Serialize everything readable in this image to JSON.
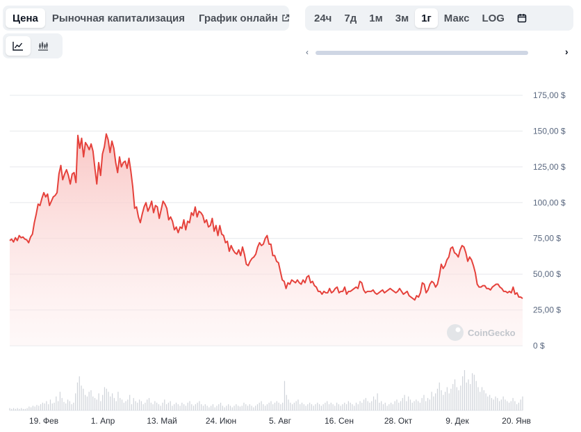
{
  "tabs": {
    "price": "Цена",
    "market_cap": "Рыночная капитализация",
    "live_chart": "График онлайн"
  },
  "ranges": [
    "24ч",
    "7д",
    "1м",
    "3м",
    "1г",
    "Макс",
    "LOG"
  ],
  "active_range": "1г",
  "watermark": "CoinGecko",
  "colors": {
    "line": "#e5413b",
    "fill_top": "#f9c4c2",
    "grid": "#e6e8ec",
    "volume": "#cfd3d9"
  },
  "chart_data": {
    "type": "area",
    "y_ticks": [
      "175,00 $",
      "150,00 $",
      "125,00 $",
      "100,00 $",
      "75,00 $",
      "50,00 $",
      "25,00 $",
      "0 $"
    ],
    "x_ticks": [
      "19. Фев",
      "1. Апр",
      "13. Май",
      "24. Июн",
      "5. Авг",
      "16. Сен",
      "28. Окт",
      "9. Дек",
      "20. Янв"
    ],
    "ylim": [
      0,
      175
    ],
    "grid": true,
    "legend": "none",
    "series": [
      {
        "values": [
          73.5,
          74.5,
          72.5,
          75.5,
          73.5,
          77,
          75.5,
          76,
          74.5,
          74,
          72,
          76,
          78,
          86,
          92,
          99,
          98,
          103,
          107,
          104,
          106,
          98,
          101,
          104,
          105,
          107,
          120,
          126,
          116,
          120,
          123,
          119,
          113,
          120,
          121,
          114,
          147,
          138,
          145,
          132,
          142,
          140,
          137,
          141,
          136,
          124,
          113,
          128,
          119,
          134,
          139,
          148,
          144,
          135,
          143,
          138,
          128,
          121,
          132,
          125,
          128,
          129,
          124,
          131,
          122,
          111,
          96,
          97,
          90,
          86,
          92,
          97,
          100,
          94,
          97,
          101,
          93,
          98,
          97,
          89,
          95,
          101,
          99,
          96,
          88,
          90,
          87,
          81,
          83,
          79,
          83,
          82,
          88,
          81,
          87,
          86,
          93,
          91,
          97,
          90,
          94,
          93,
          91,
          86,
          88,
          83,
          84,
          89,
          80,
          84,
          77,
          84,
          78,
          77,
          72,
          73,
          66,
          70,
          67,
          65,
          64,
          67,
          63,
          69,
          64,
          57,
          56,
          59,
          61,
          62,
          64,
          69,
          72,
          70,
          71,
          75,
          77,
          71,
          71,
          63,
          63,
          59,
          58,
          52,
          46,
          45,
          40,
          44,
          43,
          46,
          45,
          44,
          46,
          44,
          43,
          46,
          44,
          48,
          49,
          44,
          45,
          42,
          41,
          38,
          38,
          36,
          38,
          37,
          37,
          40,
          37,
          38,
          40,
          41,
          37,
          38,
          38,
          41,
          36,
          38,
          38,
          39,
          40,
          41,
          40,
          45,
          44,
          39,
          37,
          38,
          38,
          38,
          39,
          37,
          36,
          37,
          38,
          39,
          37,
          38,
          39,
          40,
          39,
          38,
          37,
          38,
          40,
          38,
          36,
          37,
          38,
          35,
          34,
          33,
          32,
          35,
          34,
          37,
          44,
          43,
          37,
          39,
          43,
          45,
          44,
          41,
          43,
          49,
          57,
          54,
          56,
          60,
          62,
          68,
          69,
          65,
          64,
          62,
          67,
          70,
          69,
          65,
          59,
          62,
          60,
          56,
          51,
          43,
          41,
          41,
          42,
          42,
          40,
          40,
          39,
          41,
          42,
          43,
          43,
          41,
          40,
          38,
          38,
          37,
          38,
          37,
          41,
          36,
          37,
          34,
          34,
          33
        ]
      }
    ],
    "volume": [
      3,
      2,
      3,
      2,
      3,
      2,
      3,
      2,
      2,
      3,
      5,
      4,
      6,
      5,
      7,
      6,
      8,
      10,
      9,
      12,
      8,
      14,
      9,
      10,
      18,
      12,
      24,
      16,
      11,
      9,
      14,
      12,
      8,
      10,
      22,
      36,
      44,
      32,
      28,
      20,
      18,
      24,
      26,
      18,
      16,
      14,
      22,
      12,
      20,
      30,
      28,
      24,
      18,
      22,
      16,
      12,
      24,
      16,
      14,
      10,
      12,
      14,
      20,
      8,
      16,
      12,
      10,
      14,
      12,
      8,
      10,
      14,
      16,
      10,
      8,
      12,
      10,
      8,
      6,
      10,
      14,
      8,
      10,
      12,
      6,
      8,
      10,
      8,
      6,
      10,
      8,
      6,
      10,
      12,
      8,
      6,
      8,
      10,
      12,
      8,
      6,
      8,
      6,
      4,
      6,
      8,
      4,
      6,
      8,
      10,
      6,
      4,
      6,
      8,
      6,
      4,
      6,
      8,
      6,
      5,
      6,
      10,
      8,
      6,
      8,
      6,
      4,
      6,
      8,
      10,
      12,
      8,
      6,
      8,
      10,
      12,
      8,
      10,
      12,
      10,
      8,
      10,
      38,
      20,
      14,
      10,
      8,
      10,
      12,
      14,
      8,
      10,
      8,
      6,
      8,
      10,
      8,
      6,
      8,
      10,
      8,
      6,
      8,
      10,
      12,
      8,
      10,
      8,
      6,
      10,
      8,
      6,
      8,
      10,
      8,
      12,
      10,
      8,
      6,
      10,
      8,
      12,
      10,
      14,
      16,
      12,
      10,
      12,
      18,
      14,
      22,
      10,
      12,
      8,
      10,
      6,
      8,
      10,
      8,
      12,
      14,
      10,
      12,
      16,
      20,
      12,
      18,
      14,
      10,
      12,
      14,
      12,
      10,
      16,
      20,
      12,
      16,
      14,
      24,
      18,
      22,
      28,
      36,
      26,
      20,
      24,
      30,
      22,
      28,
      34,
      40,
      30,
      26,
      32,
      44,
      52,
      36,
      40,
      34,
      48,
      46,
      38,
      30,
      24,
      30,
      26,
      22,
      18,
      20,
      16,
      14,
      18,
      16,
      12,
      14,
      18,
      14,
      12,
      10,
      12,
      16,
      12,
      8,
      10,
      14,
      18
    ]
  }
}
